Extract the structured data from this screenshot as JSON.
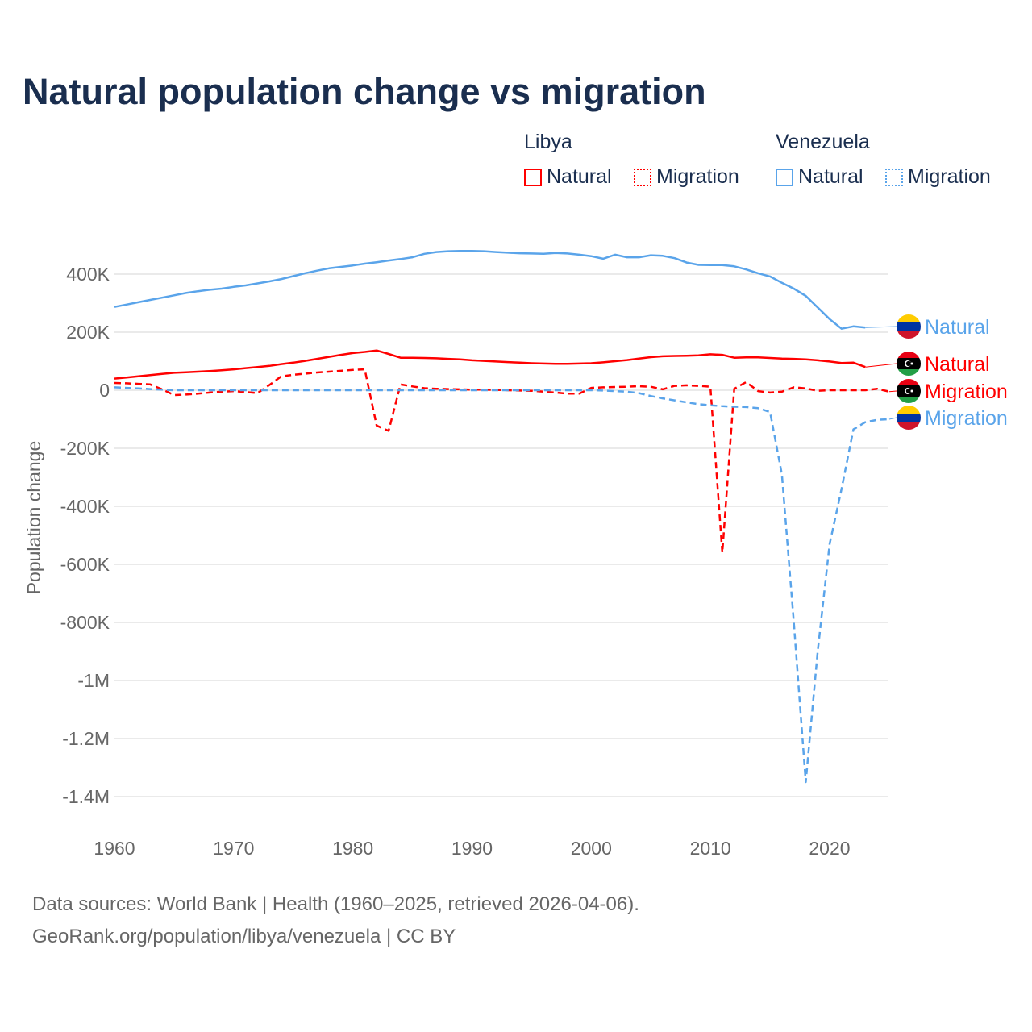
{
  "title": "Natural population change vs migration",
  "legend": {
    "groups": [
      {
        "name": "Libya",
        "items": [
          "Natural",
          "Migration"
        ]
      },
      {
        "name": "Venezuela",
        "items": [
          "Natural",
          "Migration"
        ]
      }
    ]
  },
  "footer": {
    "line1": "Data sources: World Bank | Health (1960–2025, retrieved 2026-04-06).",
    "line2": "GeoRank.org/population/libya/venezuela | CC BY"
  },
  "colors": {
    "libya": "#ff0000",
    "venezuela": "#5aa4ea"
  },
  "chart_data": {
    "type": "line",
    "title": "Natural population change vs migration",
    "xlabel": "",
    "ylabel": "Population change",
    "xlim": [
      1960,
      2025
    ],
    "ylim": [
      -1500000,
      500000
    ],
    "xticks": [
      {
        "v": 1960,
        "l": "1960"
      },
      {
        "v": 1970,
        "l": "1970"
      },
      {
        "v": 1980,
        "l": "1980"
      },
      {
        "v": 1990,
        "l": "1990"
      },
      {
        "v": 2000,
        "l": "2000"
      },
      {
        "v": 2010,
        "l": "2010"
      },
      {
        "v": 2020,
        "l": "2020"
      }
    ],
    "yticks": [
      {
        "v": 400000,
        "l": "400K"
      },
      {
        "v": 200000,
        "l": "200K"
      },
      {
        "v": 0,
        "l": "0"
      },
      {
        "v": -200000,
        "l": "-200K"
      },
      {
        "v": -400000,
        "l": "-400K"
      },
      {
        "v": -600000,
        "l": "-600K"
      },
      {
        "v": -800000,
        "l": "-800K"
      },
      {
        "v": -1000000,
        "l": "-1M"
      },
      {
        "v": -1200000,
        "l": "-1.2M"
      },
      {
        "v": -1400000,
        "l": "-1.4M"
      }
    ],
    "grid": true,
    "series": [
      {
        "name": "Venezuela Natural",
        "label": "Natural",
        "country": "venezuela",
        "dash": false,
        "start": 1960,
        "values": [
          287000,
          295000,
          303000,
          311000,
          319000,
          327000,
          335000,
          341000,
          346000,
          350000,
          356000,
          361000,
          368000,
          375000,
          383000,
          393000,
          403000,
          412000,
          420000,
          425000,
          430000,
          436000,
          441000,
          447000,
          452000,
          458000,
          470000,
          476000,
          479000,
          480000,
          480000,
          479000,
          476000,
          474000,
          472000,
          471000,
          470000,
          473000,
          471000,
          467000,
          462000,
          453000,
          467000,
          458000,
          458000,
          465000,
          463000,
          455000,
          440000,
          432000,
          431000,
          431000,
          427000,
          416000,
          403000,
          392000,
          370000,
          350000,
          325000,
          285000,
          245000,
          212000,
          220000,
          216000
        ]
      },
      {
        "name": "Libya Natural",
        "label": "Natural",
        "country": "libya",
        "dash": false,
        "start": 1960,
        "values": [
          40000,
          44000,
          48000,
          52000,
          56000,
          60000,
          62000,
          64000,
          66000,
          69000,
          72000,
          76000,
          80000,
          84000,
          90000,
          95000,
          101000,
          108000,
          115000,
          122000,
          128000,
          132000,
          137000,
          125000,
          112000,
          112000,
          111000,
          110000,
          108000,
          106000,
          103000,
          101000,
          99000,
          97000,
          95000,
          93000,
          92000,
          91000,
          91000,
          92000,
          93000,
          96000,
          100000,
          104000,
          109000,
          114000,
          117000,
          118000,
          119000,
          120000,
          124000,
          122000,
          112000,
          113000,
          113000,
          111000,
          109000,
          108000,
          106000,
          103000,
          99000,
          94000,
          95000,
          80000
        ]
      },
      {
        "name": "Libya Migration",
        "label": "Migration",
        "country": "libya",
        "dash": true,
        "start": 1960,
        "values": [
          25000,
          24000,
          22000,
          20000,
          3000,
          -17000,
          -15000,
          -12000,
          -8000,
          -5000,
          -3000,
          -6000,
          -10000,
          18000,
          48000,
          53000,
          57000,
          61000,
          64000,
          67000,
          70000,
          72000,
          -122000,
          -140000,
          20000,
          13000,
          7000,
          5000,
          4000,
          3000,
          2000,
          2000,
          1000,
          0,
          -1000,
          -2000,
          -5000,
          -8000,
          -12000,
          -12000,
          8000,
          10000,
          11000,
          12000,
          14000,
          12000,
          3000,
          15000,
          17000,
          15000,
          12000,
          -560000,
          5000,
          28000,
          -3000,
          -8000,
          -5000,
          10000,
          6000,
          -2000,
          0,
          0,
          0,
          0,
          5000,
          -5000
        ]
      },
      {
        "name": "Venezuela Migration",
        "label": "Migration",
        "country": "venezuela",
        "dash": true,
        "start": 1960,
        "values": [
          10000,
          8000,
          6000,
          4000,
          2000,
          0,
          0,
          0,
          0,
          0,
          0,
          0,
          0,
          0,
          0,
          0,
          0,
          0,
          0,
          0,
          0,
          0,
          0,
          0,
          0,
          0,
          0,
          0,
          0,
          0,
          0,
          0,
          0,
          0,
          0,
          0,
          0,
          0,
          0,
          0,
          0,
          -1000,
          -3000,
          -5000,
          -10000,
          -20000,
          -28000,
          -35000,
          -42000,
          -48000,
          -52000,
          -55000,
          -57000,
          -58000,
          -62000,
          -75000,
          -290000,
          -800000,
          -1350000,
          -900000,
          -530000,
          -340000,
          -135000,
          -110000,
          -102000,
          -100000
        ]
      }
    ],
    "end_labels": [
      {
        "text": "Natural",
        "country": "venezuela"
      },
      {
        "text": "Natural",
        "country": "libya"
      },
      {
        "text": "Migration",
        "country": "libya"
      },
      {
        "text": "Migration",
        "country": "venezuela"
      }
    ]
  }
}
